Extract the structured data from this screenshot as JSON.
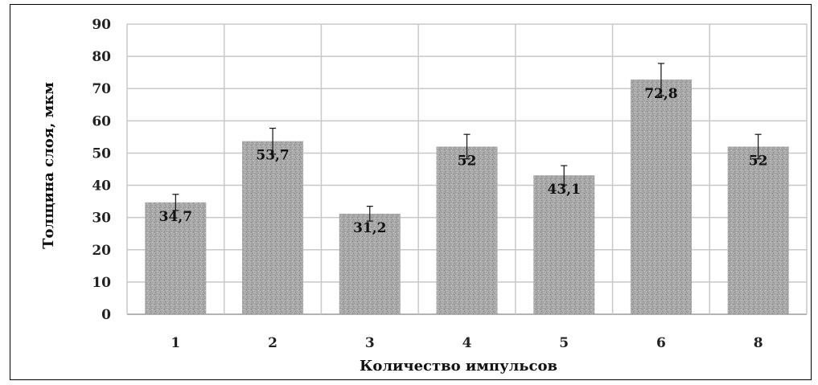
{
  "chart_data": {
    "type": "bar",
    "title": "",
    "xlabel": "Количество импульсов",
    "ylabel": "Толщина слоя, мкм",
    "categories": [
      "1",
      "2",
      "3",
      "4",
      "5",
      "6",
      "8"
    ],
    "values": [
      34.7,
      53.7,
      31.2,
      52,
      43.1,
      72.8,
      52
    ],
    "value_labels": [
      "34,7",
      "53,7",
      "31,2",
      "52",
      "43,1",
      "72,8",
      "52"
    ],
    "error_plus": [
      2.5,
      4,
      2.3,
      3.8,
      3,
      5,
      3.8
    ],
    "error_minus": [
      2.5,
      4,
      2.3,
      3.8,
      3,
      5,
      3.8
    ],
    "ylim": [
      0,
      90
    ],
    "yticks": [
      0,
      10,
      20,
      30,
      40,
      50,
      60,
      70,
      80,
      90
    ],
    "grid": true,
    "legend": "none",
    "bar_color": "#a9a9a9",
    "grid_color": "#c8c8c8"
  }
}
